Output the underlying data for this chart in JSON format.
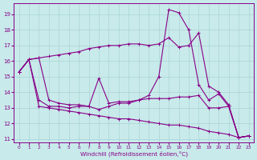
{
  "xlabel": "Windchill (Refroidissement éolien,°C)",
  "background_color": "#c8eaea",
  "grid_color": "#aad4d4",
  "line_color": "#880088",
  "xlim": [
    -0.5,
    23.5
  ],
  "ylim": [
    10.8,
    19.7
  ],
  "yticks": [
    11,
    12,
    13,
    14,
    15,
    16,
    17,
    18,
    19
  ],
  "xticks": [
    0,
    1,
    2,
    3,
    4,
    5,
    6,
    7,
    8,
    9,
    10,
    11,
    12,
    13,
    14,
    15,
    16,
    17,
    18,
    19,
    20,
    21,
    22,
    23
  ],
  "series": [
    {
      "y": [
        15.3,
        16.1,
        16.2,
        16.3,
        16.4,
        16.5,
        16.6,
        16.8,
        16.9,
        17.0,
        17.0,
        17.1,
        17.1,
        17.0,
        17.1,
        17.5,
        16.9,
        17.0,
        17.8,
        14.4,
        14.0,
        13.2,
        11.1,
        11.2
      ]
    },
    {
      "y": [
        15.3,
        16.1,
        16.2,
        13.5,
        13.3,
        13.2,
        13.2,
        13.1,
        12.9,
        13.1,
        13.3,
        13.3,
        13.5,
        13.8,
        15.0,
        19.3,
        19.1,
        18.0,
        14.5,
        13.5,
        13.9,
        13.1,
        11.1,
        11.2
      ]
    },
    {
      "y": [
        15.3,
        16.1,
        13.5,
        13.1,
        13.1,
        13.0,
        13.1,
        13.1,
        14.9,
        13.3,
        13.4,
        13.4,
        13.5,
        13.6,
        13.6,
        13.6,
        13.7,
        13.7,
        13.8,
        13.0,
        13.0,
        13.1,
        11.1,
        11.2
      ]
    },
    {
      "y": [
        15.3,
        16.1,
        13.1,
        13.0,
        12.9,
        12.8,
        12.7,
        12.6,
        12.5,
        12.4,
        12.3,
        12.3,
        12.2,
        12.1,
        12.0,
        11.9,
        11.9,
        11.8,
        11.7,
        11.5,
        11.4,
        11.3,
        11.1,
        11.2
      ]
    }
  ]
}
